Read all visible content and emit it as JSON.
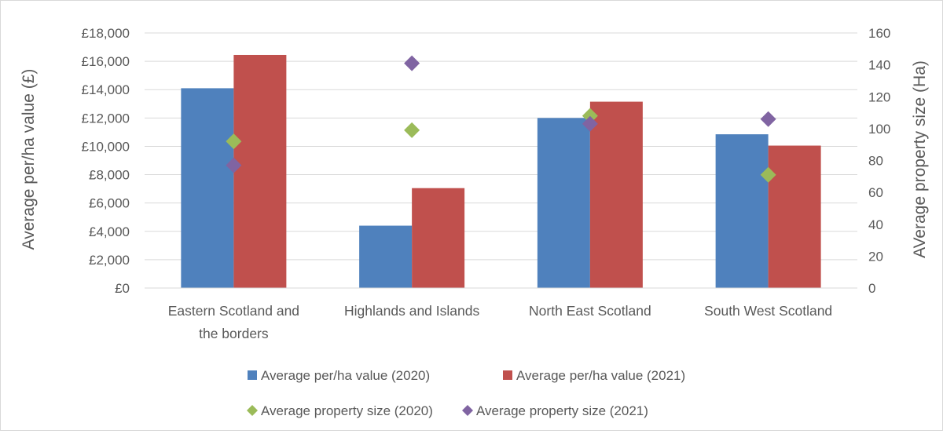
{
  "chart_data": {
    "type": "bar",
    "categories": [
      "Eastern Scotland and the borders",
      "Highlands and Islands",
      "North East Scotland",
      "South West Scotland"
    ],
    "category_lines": [
      [
        "Eastern Scotland and",
        "the borders"
      ],
      [
        "Highlands and Islands"
      ],
      [
        "North East Scotland"
      ],
      [
        "South West Scotland"
      ]
    ],
    "series": [
      {
        "name": "Average per/ha value (2020)",
        "type": "bar",
        "axis": "left",
        "color": "#4f81bd",
        "values": [
          14100,
          4400,
          12000,
          10850
        ]
      },
      {
        "name": "Average per/ha value (2021)",
        "type": "bar",
        "axis": "left",
        "color": "#c0504d",
        "values": [
          16450,
          7050,
          13150,
          10050
        ]
      },
      {
        "name": "Average property size (2020)",
        "type": "scatter",
        "marker": "diamond",
        "axis": "right",
        "color": "#9bbb59",
        "values": [
          92,
          99,
          108,
          71
        ]
      },
      {
        "name": "Average property size (2021)",
        "type": "scatter",
        "marker": "diamond",
        "axis": "right",
        "color": "#8064a2",
        "values": [
          77,
          141,
          103,
          106
        ]
      }
    ],
    "ylabel": "Average per/ha value (£)",
    "y2label": "AVerage  property size (Ha)",
    "ylim": [
      0,
      18000
    ],
    "y2lim": [
      0,
      160
    ],
    "yticks": [
      "£0",
      "£2,000",
      "£4,000",
      "£6,000",
      "£8,000",
      "£10,000",
      "£12,000",
      "£14,000",
      "£16,000",
      "£18,000"
    ],
    "y2ticks": [
      "0",
      "20",
      "40",
      "60",
      "80",
      "100",
      "120",
      "140",
      "160"
    ],
    "grid": true,
    "legend_position": "bottom"
  }
}
